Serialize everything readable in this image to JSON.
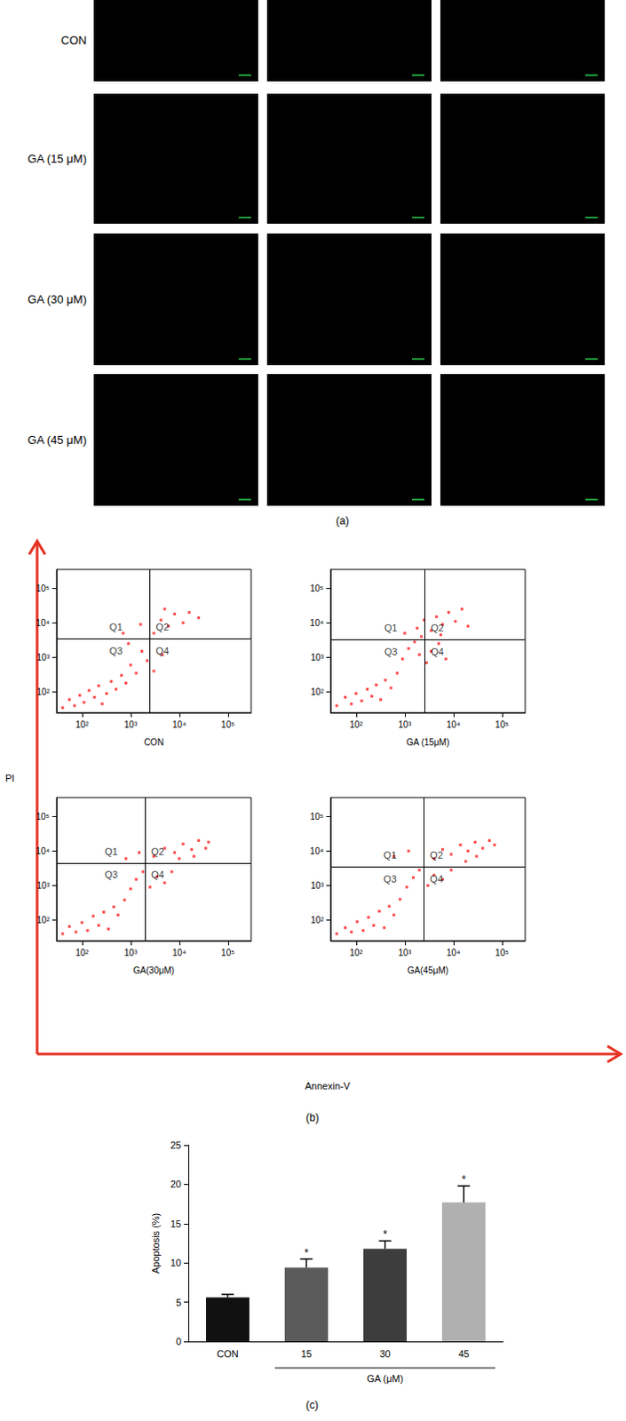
{
  "panel_a": {
    "label": "(a)",
    "rows": [
      "CON",
      "GA (15 μM)",
      "GA (30 μM)",
      "GA (45 μM)"
    ],
    "columns": 3
  },
  "chart_data": [
    {
      "type": "scatter",
      "panel": "(b)",
      "x_label": "Annexin-V",
      "y_label": "PI",
      "log": true,
      "xlim": [
        30,
        300000
      ],
      "ylim": [
        25,
        350000
      ],
      "xticks": [
        {
          "value": 100,
          "label": "10²"
        },
        {
          "value": 1000,
          "label": "10³"
        },
        {
          "value": 10000,
          "label": "10⁴"
        },
        {
          "value": 100000,
          "label": "10⁵"
        }
      ],
      "yticks": [
        {
          "value": 100,
          "label": "10²"
        },
        {
          "value": 1000,
          "label": "10³"
        },
        {
          "value": 10000,
          "label": "10⁴"
        },
        {
          "value": 100000,
          "label": "10⁵"
        }
      ],
      "color": "#ff1a1a",
      "marker": "square",
      "quadrants": [
        "Q1",
        "Q2",
        "Q3",
        "Q4"
      ],
      "plots": [
        {
          "title": "CON",
          "gates": {
            "x": 2500,
            "y": 3500
          },
          "points": [
            [
              40,
              35
            ],
            [
              55,
              60
            ],
            [
              70,
              40
            ],
            [
              90,
              80
            ],
            [
              110,
              50
            ],
            [
              140,
              110
            ],
            [
              180,
              70
            ],
            [
              220,
              150
            ],
            [
              260,
              45
            ],
            [
              320,
              90
            ],
            [
              400,
              200
            ],
            [
              500,
              120
            ],
            [
              650,
              300
            ],
            [
              800,
              180
            ],
            [
              1000,
              600
            ],
            [
              1300,
              350
            ],
            [
              1700,
              1500
            ],
            [
              900,
              2500
            ],
            [
              2200,
              800
            ],
            [
              3000,
              400
            ],
            [
              4500,
              1200
            ],
            [
              700,
              5000
            ],
            [
              1600,
              9000
            ],
            [
              3000,
              5000
            ],
            [
              4200,
              12000
            ],
            [
              6000,
              8000
            ],
            [
              8000,
              18000
            ],
            [
              12000,
              10000
            ],
            [
              16000,
              20000
            ],
            [
              5000,
              25000
            ],
            [
              25000,
              14000
            ]
          ]
        },
        {
          "title": "GA (15μM)",
          "gates": {
            "x": 2600,
            "y": 3300
          },
          "points": [
            [
              40,
              40
            ],
            [
              60,
              70
            ],
            [
              80,
              45
            ],
            [
              100,
              90
            ],
            [
              130,
              55
            ],
            [
              170,
              120
            ],
            [
              210,
              75
            ],
            [
              260,
              160
            ],
            [
              320,
              60
            ],
            [
              400,
              220
            ],
            [
              520,
              130
            ],
            [
              700,
              350
            ],
            [
              900,
              900
            ],
            [
              1200,
              1800
            ],
            [
              1600,
              2800
            ],
            [
              2000,
              1200
            ],
            [
              2800,
              700
            ],
            [
              3500,
              1500
            ],
            [
              5000,
              2500
            ],
            [
              7000,
              900
            ],
            [
              1000,
              5000
            ],
            [
              1800,
              7000
            ],
            [
              2500,
              12000
            ],
            [
              3500,
              6000
            ],
            [
              4500,
              15000
            ],
            [
              6000,
              9000
            ],
            [
              8000,
              20000
            ],
            [
              11000,
              11000
            ],
            [
              15000,
              25000
            ],
            [
              20000,
              8000
            ],
            [
              2200,
              4000
            ],
            [
              5500,
              4500
            ]
          ]
        },
        {
          "title": "GA(30μM)",
          "gates": {
            "x": 2000,
            "y": 4500
          },
          "points": [
            [
              40,
              40
            ],
            [
              55,
              65
            ],
            [
              75,
              45
            ],
            [
              100,
              85
            ],
            [
              130,
              50
            ],
            [
              170,
              130
            ],
            [
              220,
              70
            ],
            [
              280,
              170
            ],
            [
              350,
              55
            ],
            [
              450,
              240
            ],
            [
              550,
              140
            ],
            [
              750,
              380
            ],
            [
              1000,
              800
            ],
            [
              1300,
              1500
            ],
            [
              1800,
              2500
            ],
            [
              2500,
              900
            ],
            [
              3500,
              1800
            ],
            [
              5000,
              1200
            ],
            [
              7000,
              2500
            ],
            [
              800,
              6000
            ],
            [
              1500,
              9000
            ],
            [
              3000,
              7000
            ],
            [
              5000,
              12000
            ],
            [
              8000,
              9000
            ],
            [
              12000,
              16000
            ],
            [
              18000,
              11000
            ],
            [
              25000,
              20000
            ],
            [
              35000,
              12000
            ],
            [
              10000,
              6000
            ],
            [
              40000,
              18000
            ],
            [
              20000,
              7000
            ]
          ]
        },
        {
          "title": "GA(45μM)",
          "gates": {
            "x": 2500,
            "y": 3500
          },
          "points": [
            [
              40,
              40
            ],
            [
              60,
              60
            ],
            [
              80,
              45
            ],
            [
              105,
              90
            ],
            [
              140,
              50
            ],
            [
              180,
              120
            ],
            [
              230,
              70
            ],
            [
              300,
              180
            ],
            [
              380,
              60
            ],
            [
              480,
              250
            ],
            [
              600,
              140
            ],
            [
              800,
              400
            ],
            [
              1100,
              900
            ],
            [
              1500,
              1700
            ],
            [
              2000,
              2800
            ],
            [
              3000,
              1000
            ],
            [
              4000,
              2000
            ],
            [
              6000,
              1500
            ],
            [
              9000,
              2800
            ],
            [
              600,
              7000
            ],
            [
              1200,
              10000
            ],
            [
              4000,
              6000
            ],
            [
              6000,
              11000
            ],
            [
              9000,
              8000
            ],
            [
              14000,
              15000
            ],
            [
              20000,
              10000
            ],
            [
              28000,
              18000
            ],
            [
              40000,
              12000
            ],
            [
              55000,
              20000
            ],
            [
              30000,
              7000
            ],
            [
              18000,
              5000
            ],
            [
              70000,
              15000
            ]
          ]
        }
      ]
    },
    {
      "type": "bar",
      "panel": "(c)",
      "y_label": "Apoptosis (%)",
      "x_group_label": "GA (μM)",
      "categories": [
        "CON",
        "15",
        "30",
        "45"
      ],
      "values": [
        5.6,
        9.4,
        11.8,
        17.7
      ],
      "errors": [
        0.4,
        1.1,
        1.0,
        2.1
      ],
      "colors": [
        "#111111",
        "#5b5b5b",
        "#3d3d3d",
        "#b0b0b0"
      ],
      "significance": [
        null,
        "*",
        "*",
        "*"
      ],
      "ylim": [
        0,
        25
      ],
      "yticks": [
        0,
        5,
        10,
        15,
        20,
        25
      ],
      "grid": false
    }
  ]
}
